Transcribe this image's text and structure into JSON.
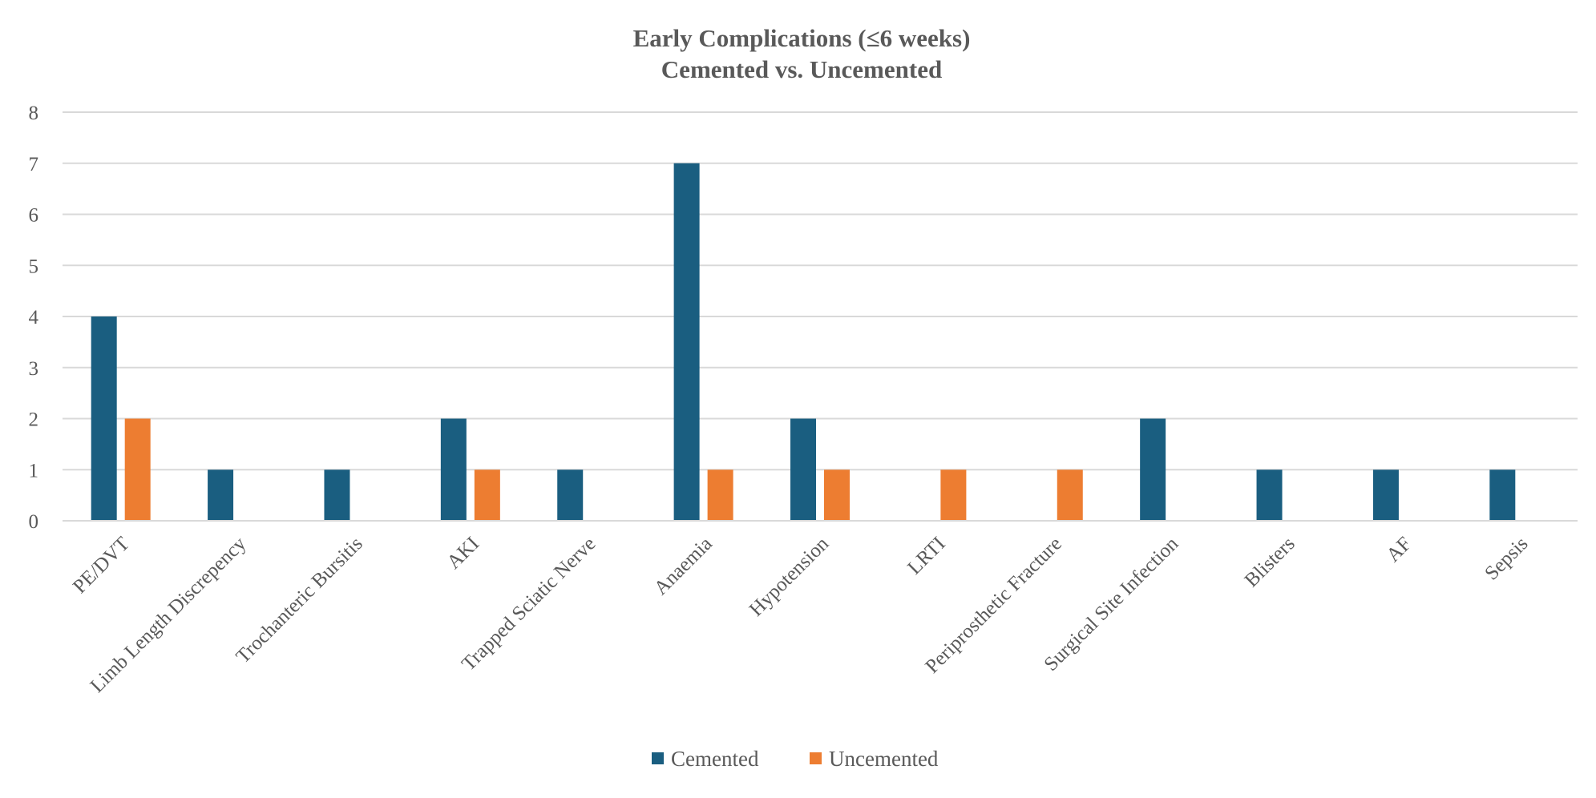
{
  "chart_data": {
    "type": "bar",
    "title": "Early Complications (≤6 weeks)",
    "subtitle": "Cemented vs. Uncemented",
    "xlabel": "",
    "ylabel": "",
    "ylim": [
      0,
      8
    ],
    "yticks": [
      0,
      1,
      2,
      3,
      4,
      5,
      6,
      7,
      8
    ],
    "grid": true,
    "legend_position": "bottom",
    "categories": [
      "PE/DVT",
      "Limb Length Discrepency",
      "Trochanteric Bursitis",
      "AKI",
      "Trapped Sciatic Nerve",
      "Anaemia",
      "Hypotension",
      "LRTI",
      "Periprosthetic Fracture",
      "Surgical Site Infection",
      "Blisters",
      "AF",
      "Sepsis"
    ],
    "series": [
      {
        "name": "Cemented",
        "color": "#1a5e80",
        "values": [
          4,
          1,
          1,
          2,
          1,
          7,
          2,
          0,
          0,
          2,
          1,
          1,
          1
        ]
      },
      {
        "name": "Uncemented",
        "color": "#ed7d31",
        "values": [
          2,
          0,
          0,
          1,
          0,
          1,
          1,
          1,
          1,
          0,
          0,
          0,
          0
        ]
      }
    ]
  }
}
